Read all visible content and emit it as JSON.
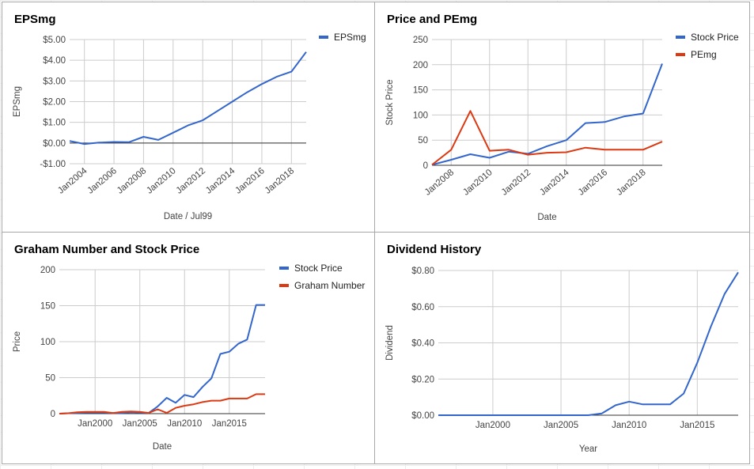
{
  "chart_data": [
    {
      "type": "line",
      "title": "EPSmg",
      "xlabel": "Date / Jul99",
      "ylabel": "EPSmg",
      "x": [
        2003,
        2004,
        2005,
        2006,
        2007,
        2008,
        2009,
        2010,
        2011,
        2012,
        2013,
        2014,
        2015,
        2016,
        2017,
        2018,
        2019
      ],
      "x_ticks": [
        2004,
        2006,
        2008,
        2010,
        2012,
        2014,
        2016,
        2018
      ],
      "x_tick_labels": [
        "Jan2004",
        "Jan2006",
        "Jan2008",
        "Jan2010",
        "Jan2012",
        "Jan2014",
        "Jan2016",
        "Jan2018"
      ],
      "xlim": [
        2003,
        2019
      ],
      "ylim": [
        -1,
        5
      ],
      "y_ticks": [
        -1,
        0,
        1,
        2,
        3,
        4,
        5
      ],
      "y_tick_labels": [
        "-$1.00",
        "$0.00",
        "$1.00",
        "$2.00",
        "$3.00",
        "$4.00",
        "$5.00"
      ],
      "zero_line": true,
      "legend_position": "right",
      "series": [
        {
          "name": "EPSmg",
          "color": "#3366cc",
          "values": [
            0.1,
            -0.05,
            0.02,
            0.05,
            0.04,
            0.3,
            0.15,
            0.5,
            0.85,
            1.1,
            1.55,
            2.0,
            2.45,
            2.85,
            3.2,
            3.45,
            4.4
          ]
        }
      ]
    },
    {
      "type": "line",
      "title": "Price and PEmg",
      "xlabel": "Date",
      "ylabel": "Stock Price",
      "x": [
        2007,
        2008,
        2009,
        2010,
        2011,
        2012,
        2013,
        2014,
        2015,
        2016,
        2017,
        2018,
        2019
      ],
      "x_ticks": [
        2008,
        2010,
        2012,
        2014,
        2016,
        2018
      ],
      "x_tick_labels": [
        "Jan2008",
        "Jan2010",
        "Jan2012",
        "Jan2014",
        "Jan2016",
        "Jan2018"
      ],
      "xlim": [
        2007,
        2019
      ],
      "ylim": [
        0,
        250
      ],
      "y_ticks": [
        0,
        50,
        100,
        150,
        200,
        250
      ],
      "y_tick_labels": [
        "0",
        "50",
        "100",
        "150",
        "200",
        "250"
      ],
      "legend_position": "right",
      "series": [
        {
          "name": "Stock Price",
          "color": "#3366cc",
          "values": [
            1,
            11,
            22,
            15,
            27,
            23,
            38,
            50,
            84,
            86,
            97,
            103,
            202
          ]
        },
        {
          "name": "PEmg",
          "color": "#dc3912",
          "values": [
            1,
            31,
            108,
            29,
            31,
            21,
            25,
            26,
            35,
            31,
            31,
            31,
            47
          ]
        }
      ]
    },
    {
      "type": "line",
      "title": "Graham Number and Stock Price",
      "xlabel": "Date",
      "ylabel": "Price",
      "x": [
        1996,
        1997,
        1998,
        1999,
        2000,
        2001,
        2002,
        2003,
        2004,
        2005,
        2006,
        2007,
        2008,
        2009,
        2010,
        2011,
        2012,
        2013,
        2014,
        2015,
        2016,
        2017,
        2018,
        2019
      ],
      "x_ticks": [
        2000,
        2005,
        2010,
        2015
      ],
      "x_tick_labels": [
        "Jan2000",
        "Jan2005",
        "Jan2010",
        "Jan2015"
      ],
      "xlim": [
        1996,
        2019
      ],
      "ylim": [
        0,
        200
      ],
      "y_ticks": [
        0,
        50,
        100,
        150,
        200
      ],
      "y_tick_labels": [
        "0",
        "50",
        "100",
        "150",
        "200"
      ],
      "legend_position": "right",
      "series": [
        {
          "name": "Stock Price",
          "color": "#3366cc",
          "values": [
            0,
            0.5,
            1,
            1.5,
            1.5,
            1.5,
            0.8,
            1,
            2,
            1.5,
            1,
            10,
            22,
            15,
            26,
            23,
            37,
            49,
            83,
            86,
            97,
            103,
            151,
            151
          ]
        },
        {
          "name": "Graham Number",
          "color": "#dc3912",
          "values": [
            0,
            0.5,
            2,
            2.5,
            2.5,
            2.5,
            0.8,
            2.5,
            3,
            2.5,
            1,
            6,
            1,
            8,
            11,
            13,
            16,
            18,
            18,
            21,
            21,
            21,
            27,
            27
          ]
        }
      ]
    },
    {
      "type": "line",
      "title": "Dividend History",
      "xlabel": "Year",
      "ylabel": "Dividend",
      "x": [
        1996,
        1997,
        1998,
        1999,
        2000,
        2001,
        2002,
        2003,
        2004,
        2005,
        2006,
        2007,
        2008,
        2009,
        2010,
        2011,
        2012,
        2013,
        2014,
        2015,
        2016,
        2017,
        2018
      ],
      "x_ticks": [
        2000,
        2005,
        2010,
        2015
      ],
      "x_tick_labels": [
        "Jan2000",
        "Jan2005",
        "Jan2010",
        "Jan2015"
      ],
      "xlim": [
        1996,
        2018
      ],
      "ylim": [
        0,
        0.8
      ],
      "y_ticks": [
        0,
        0.2,
        0.4,
        0.6,
        0.8
      ],
      "y_tick_labels": [
        "$0.00",
        "$0.20",
        "$0.40",
        "$0.60",
        "$0.80"
      ],
      "legend_position": "none",
      "series": [
        {
          "name": "",
          "color": "#3366cc",
          "values": [
            0,
            0,
            0,
            0,
            0,
            0,
            0,
            0,
            0,
            0,
            0,
            0,
            0.01,
            0.055,
            0.075,
            0.06,
            0.06,
            0.06,
            0.12,
            0.29,
            0.49,
            0.67,
            0.79
          ]
        }
      ]
    }
  ]
}
